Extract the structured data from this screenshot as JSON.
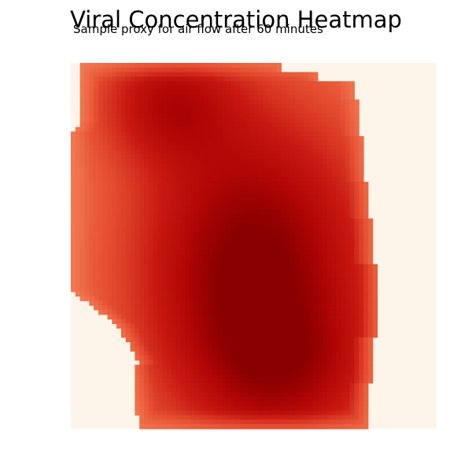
{
  "chart_data": {
    "type": "heatmap",
    "title": "Viral Concentration Heatmap",
    "subtitle": "Sample proxy for air flow after 60 minutes",
    "xlabel": "",
    "ylabel": "",
    "axes_visible": false,
    "colorbar": false,
    "grid": false,
    "colormap": "OrRd",
    "value_range": [
      0,
      1
    ],
    "colors": {
      "background": "#fdf5e9",
      "low": "#f4835a",
      "mid": "#c81a12",
      "high": "#8a0000"
    },
    "hotspots": [
      {
        "cx": 0.5,
        "cy": 0.56,
        "sx": 0.24,
        "sy": 0.32,
        "amp": 1.0
      },
      {
        "cx": 0.26,
        "cy": 0.1,
        "sx": 0.14,
        "sy": 0.12,
        "amp": 0.55
      },
      {
        "cx": 0.6,
        "cy": 0.86,
        "sx": 0.18,
        "sy": 0.14,
        "amp": 0.35
      }
    ]
  }
}
